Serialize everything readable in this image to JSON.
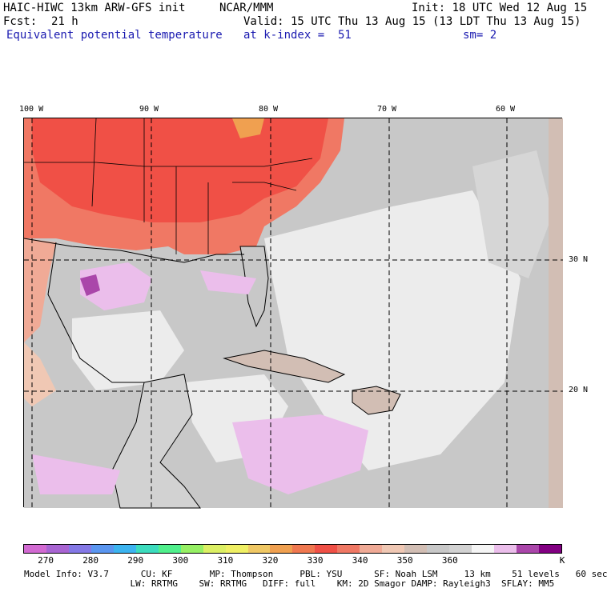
{
  "header": {
    "model": "HAIC-HIWC 13km ARW-GFS init",
    "org": "NCAR/MMM",
    "init": "Init: 18 UTC Wed 12 Aug 15",
    "fcst_label": "Fcst:",
    "fcst_value": "21 h",
    "valid": "Valid: 15 UTC Thu 13 Aug 15 (13 LDT Thu 13 Aug 15)",
    "field": "Equivalent potential temperature",
    "level": "at k-index =  51",
    "smooth": "sm= 2"
  },
  "map": {
    "lon_labels": [
      "100 W",
      "90 W",
      "80 W",
      "70 W",
      "60 W"
    ],
    "lat_labels": [
      "30 N",
      "20 N"
    ]
  },
  "colorbar": {
    "colors": [
      "#d26ad2",
      "#a864d2",
      "#8478e6",
      "#5a96f0",
      "#3cb4f0",
      "#3cdcbe",
      "#50f08c",
      "#96f064",
      "#dcf064",
      "#f0f064",
      "#f0c864",
      "#f0a050",
      "#f07850",
      "#f05046",
      "#f07864",
      "#f0aa96",
      "#f0c8b4",
      "#d2beb4",
      "#c8c8c8",
      "#d2d2d2",
      "#f5f5f5",
      "#ebbeeb",
      "#aa46aa",
      "#820082"
    ],
    "labels": [
      "270",
      "280",
      "290",
      "300",
      "310",
      "320",
      "330",
      "340",
      "350",
      "360",
      "K"
    ]
  },
  "footer": {
    "line1": "Model Info: V3.7      CU: KF       MP: Thompson     PBL: YSU      SF: Noah LSM     13 km    51 levels   60 sec",
    "line2": "                    LW: RRTMG    SW: RRTMG   DIFF: full    KM: 2D Smagor DAMP: Rayleigh3  SFLAY: MM5"
  }
}
